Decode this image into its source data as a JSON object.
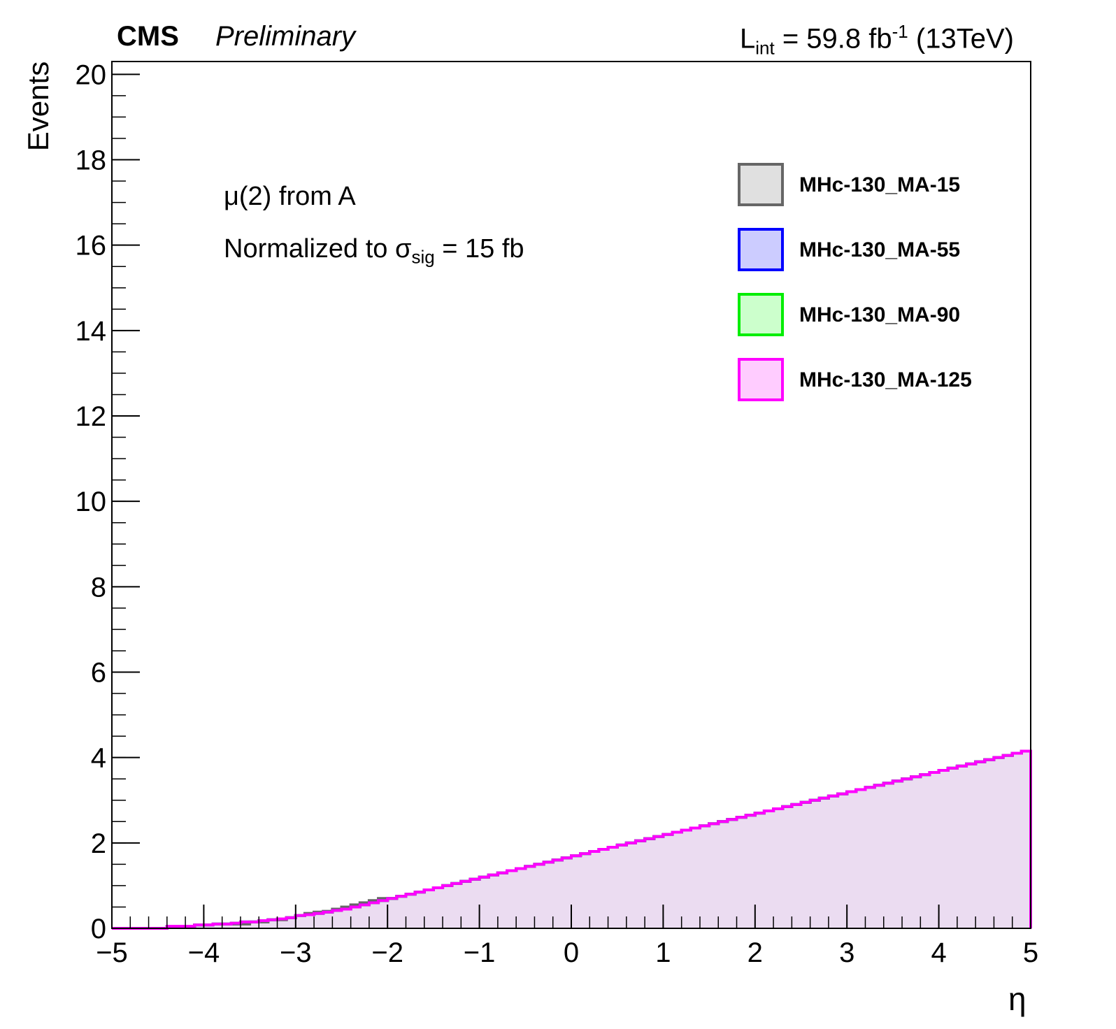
{
  "header": {
    "experiment": "CMS",
    "status": "Preliminary",
    "lumi_prefix": "L",
    "lumi_sub": "int",
    "lumi_mid": " = 59.8 fb",
    "lumi_sup": "-1",
    "lumi_suffix": " (13TeV)"
  },
  "annotations": {
    "line1": "μ(2) from A",
    "line2_prefix": "Normalized to σ",
    "line2_sub": "sig",
    "line2_suffix": " = 15 fb"
  },
  "chart_data": {
    "type": "step-histogram",
    "title": "",
    "xlabel": "η",
    "ylabel": "Events",
    "xlim": [
      -5,
      5
    ],
    "ylim": [
      0,
      20.3
    ],
    "bin_width": 0.1,
    "x_ticks": [
      "−5",
      "−4",
      "−3",
      "−2",
      "−1",
      "0",
      "1",
      "2",
      "3",
      "4",
      "5"
    ],
    "y_ticks": [
      "0",
      "2",
      "4",
      "6",
      "8",
      "10",
      "12",
      "14",
      "16",
      "18",
      "20"
    ],
    "legend_position": "top-right",
    "series": [
      {
        "name": "MHc-130_MA-15",
        "line_color": "#666666",
        "fill_color": "#e0e0e0",
        "values": [
          0,
          0,
          0,
          0,
          0,
          0,
          0.05,
          0.05,
          0.05,
          0.08,
          0.08,
          0.1,
          0.1,
          0.1,
          0.1,
          0.15,
          0.15,
          0.2,
          0.2,
          0.25,
          0.3,
          0.35,
          0.38,
          0.4,
          0.45,
          0.5,
          0.55,
          0.6,
          0.65,
          0.7,
          0.7,
          0.75,
          0.8,
          0.85,
          0.9,
          0.95,
          1.0,
          1.05,
          1.1,
          1.15,
          1.2,
          1.25,
          1.3,
          1.35,
          1.4,
          1.45,
          1.5,
          1.55,
          1.6,
          1.65,
          1.7,
          1.75,
          1.8,
          1.85,
          1.9,
          1.95,
          2.0,
          2.05,
          2.1,
          2.15,
          2.2,
          2.25,
          2.3,
          2.35,
          2.4,
          2.45,
          2.5,
          2.55,
          2.6,
          2.65,
          2.7,
          2.75,
          2.8,
          2.85,
          2.9,
          2.95,
          3.0,
          3.05,
          3.1,
          3.15,
          3.2,
          3.25,
          3.3,
          3.35,
          3.4,
          3.45,
          3.5,
          3.55,
          3.6,
          3.65,
          3.7,
          3.75,
          3.8,
          3.85,
          3.9,
          3.95,
          4.0,
          4.05,
          4.1,
          4.15
        ]
      },
      {
        "name": "MHc-130_MA-55",
        "line_color": "#0000ff",
        "fill_color": "#ccccff",
        "values": [
          0,
          0,
          0,
          0,
          0,
          0,
          0.05,
          0.05,
          0.05,
          0.08,
          0.08,
          0.1,
          0.1,
          0.12,
          0.15,
          0.15,
          0.18,
          0.2,
          0.22,
          0.25,
          0.3,
          0.32,
          0.35,
          0.38,
          0.42,
          0.45,
          0.5,
          0.55,
          0.6,
          0.65,
          0.7,
          0.75,
          0.8,
          0.85,
          0.9,
          0.95,
          1.0,
          1.05,
          1.1,
          1.15,
          1.2,
          1.25,
          1.3,
          1.35,
          1.4,
          1.45,
          1.5,
          1.55,
          1.6,
          1.65,
          1.7,
          1.75,
          1.8,
          1.85,
          1.9,
          1.95,
          2.0,
          2.05,
          2.1,
          2.15,
          2.2,
          2.25,
          2.3,
          2.35,
          2.4,
          2.45,
          2.5,
          2.55,
          2.6,
          2.65,
          2.7,
          2.75,
          2.8,
          2.85,
          2.9,
          2.95,
          3.0,
          3.05,
          3.1,
          3.15,
          3.2,
          3.25,
          3.3,
          3.35,
          3.4,
          3.45,
          3.5,
          3.55,
          3.6,
          3.65,
          3.7,
          3.75,
          3.8,
          3.85,
          3.9,
          3.95,
          4.0,
          4.05,
          4.1,
          4.15
        ]
      },
      {
        "name": "MHc-130_MA-90",
        "line_color": "#00ee00",
        "fill_color": "#ccffcc",
        "values": [
          0,
          0,
          0,
          0,
          0,
          0,
          0.05,
          0.05,
          0.05,
          0.08,
          0.08,
          0.1,
          0.1,
          0.12,
          0.15,
          0.15,
          0.18,
          0.2,
          0.22,
          0.25,
          0.3,
          0.32,
          0.35,
          0.38,
          0.42,
          0.45,
          0.5,
          0.55,
          0.6,
          0.65,
          0.7,
          0.75,
          0.8,
          0.85,
          0.9,
          0.95,
          1.0,
          1.05,
          1.1,
          1.15,
          1.2,
          1.25,
          1.3,
          1.35,
          1.4,
          1.45,
          1.5,
          1.55,
          1.6,
          1.65,
          1.7,
          1.75,
          1.8,
          1.85,
          1.9,
          1.95,
          2.0,
          2.05,
          2.1,
          2.15,
          2.2,
          2.25,
          2.3,
          2.35,
          2.4,
          2.45,
          2.5,
          2.55,
          2.6,
          2.65,
          2.7,
          2.75,
          2.8,
          2.85,
          2.9,
          2.95,
          3.0,
          3.05,
          3.1,
          3.15,
          3.2,
          3.25,
          3.3,
          3.35,
          3.4,
          3.45,
          3.5,
          3.55,
          3.6,
          3.65,
          3.7,
          3.75,
          3.8,
          3.85,
          3.9,
          3.95,
          4.0,
          4.05,
          4.1,
          4.15
        ]
      },
      {
        "name": "MHc-130_MA-125",
        "line_color": "#ff00ff",
        "fill_color": "#ffccff",
        "values": [
          0,
          0,
          0,
          0,
          0,
          0,
          0.05,
          0.05,
          0.05,
          0.08,
          0.08,
          0.1,
          0.1,
          0.12,
          0.15,
          0.15,
          0.18,
          0.2,
          0.22,
          0.25,
          0.3,
          0.32,
          0.35,
          0.38,
          0.42,
          0.45,
          0.5,
          0.55,
          0.6,
          0.65,
          0.7,
          0.75,
          0.8,
          0.85,
          0.9,
          0.95,
          1.0,
          1.05,
          1.1,
          1.15,
          1.2,
          1.25,
          1.3,
          1.35,
          1.4,
          1.45,
          1.5,
          1.55,
          1.6,
          1.65,
          1.7,
          1.75,
          1.8,
          1.85,
          1.9,
          1.95,
          2.0,
          2.05,
          2.1,
          2.15,
          2.2,
          2.25,
          2.3,
          2.35,
          2.4,
          2.45,
          2.5,
          2.55,
          2.6,
          2.65,
          2.7,
          2.75,
          2.8,
          2.85,
          2.9,
          2.95,
          3.0,
          3.05,
          3.1,
          3.15,
          3.2,
          3.25,
          3.3,
          3.35,
          3.4,
          3.45,
          3.5,
          3.55,
          3.6,
          3.65,
          3.7,
          3.75,
          3.8,
          3.85,
          3.9,
          3.95,
          4.0,
          4.05,
          4.1,
          4.15
        ]
      }
    ],
    "overlap_fill_color": "#a39ac4"
  }
}
